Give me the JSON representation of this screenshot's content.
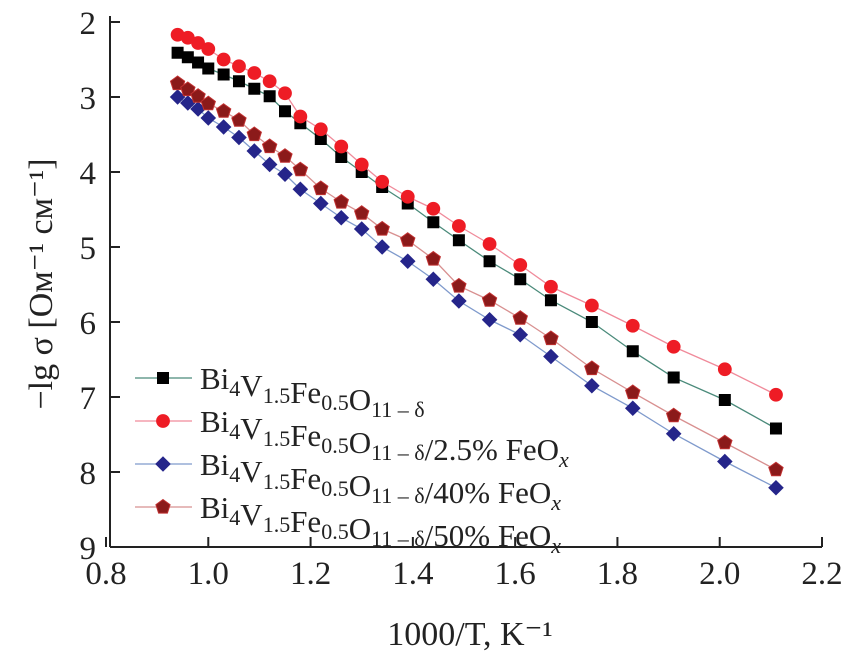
{
  "chart_data": {
    "type": "line",
    "xlabel": "1000/T, K⁻¹",
    "ylabel": "−lg σ [Ом⁻¹ см⁻¹]",
    "xlim": [
      0.8,
      2.2
    ],
    "ylim": [
      2,
      9
    ],
    "y_inverted": true,
    "grid": false,
    "legend_placement": "bottom-left",
    "x_ticks": [
      "0.8",
      "1.0",
      "1.2",
      "1.4",
      "1.6",
      "1.8",
      "2.0",
      "2.2"
    ],
    "y_ticks": [
      "2",
      "3",
      "4",
      "5",
      "6",
      "7",
      "8",
      "9"
    ],
    "x": [
      0.94,
      0.96,
      0.98,
      1.0,
      1.03,
      1.06,
      1.09,
      1.12,
      1.15,
      1.18,
      1.22,
      1.26,
      1.3,
      1.34,
      1.39,
      1.44,
      1.49,
      1.55,
      1.61,
      1.67,
      1.75,
      1.83,
      1.91,
      2.01,
      2.11
    ],
    "series": [
      {
        "name": "Bi4V1.5Fe0.5O11 – δ",
        "marker": "square",
        "color": "#000000",
        "line_color": "#4a8a7a",
        "values": [
          2.41,
          2.47,
          2.54,
          2.62,
          2.7,
          2.79,
          2.89,
          2.99,
          3.19,
          3.35,
          3.56,
          3.8,
          4.0,
          4.2,
          4.42,
          4.67,
          4.91,
          5.19,
          5.43,
          5.71,
          6.0,
          6.39,
          6.74,
          7.04,
          7.42
        ]
      },
      {
        "name": "Bi4V1.5Fe0.5O11 – δ/2.5% FeOx",
        "marker": "circle",
        "color": "#ee1c25",
        "line_color": "#f08a9a",
        "values": [
          2.17,
          2.21,
          2.28,
          2.36,
          2.5,
          2.59,
          2.68,
          2.79,
          2.95,
          3.26,
          3.43,
          3.66,
          3.9,
          4.13,
          4.33,
          4.49,
          4.72,
          4.96,
          5.24,
          5.53,
          5.78,
          6.05,
          6.33,
          6.63,
          6.97
        ]
      },
      {
        "name": "Bi4V1.5Fe0.5O11 – δ/40% FeOx",
        "marker": "diamond",
        "color": "#25258a",
        "line_color": "#7f9acc",
        "values": [
          3.0,
          3.08,
          3.16,
          3.28,
          3.4,
          3.54,
          3.72,
          3.9,
          4.03,
          4.23,
          4.42,
          4.61,
          4.76,
          5.0,
          5.19,
          5.43,
          5.72,
          5.97,
          6.17,
          6.46,
          6.85,
          7.15,
          7.49,
          7.86,
          8.21
        ]
      },
      {
        "name": "Bi4V1.5Fe0.5O11 – δ/50% FeOx",
        "marker": "pentagon",
        "color": "#8b1a1a",
        "line_color": "#d89090",
        "values": [
          2.82,
          2.9,
          2.99,
          3.09,
          3.19,
          3.31,
          3.5,
          3.66,
          3.79,
          3.97,
          4.22,
          4.4,
          4.55,
          4.76,
          4.91,
          5.16,
          5.52,
          5.71,
          5.95,
          6.22,
          6.62,
          6.94,
          7.25,
          7.61,
          7.97
        ]
      }
    ]
  }
}
